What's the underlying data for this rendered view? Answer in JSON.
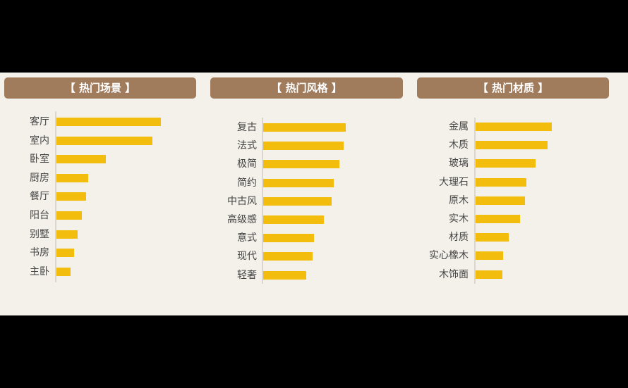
{
  "panels": [
    {
      "title": "【 热门场景 】"
    },
    {
      "title": "【 热门风格 】"
    },
    {
      "title": "【 热门材质 】"
    }
  ],
  "colors": {
    "header_bg": "#a07c5d",
    "bar": "#f2bd0c",
    "panel_bg": "#f4f1ea",
    "axis": "#dcd6cc"
  },
  "chart_data": [
    {
      "type": "bar",
      "orientation": "horizontal",
      "title": "【 热门场景 】",
      "categories": [
        "客厅",
        "室内",
        "卧室",
        "厨房",
        "餐厅",
        "阳台",
        "别墅",
        "书房",
        "主卧"
      ],
      "values": [
        148,
        136,
        70,
        45,
        42,
        36,
        30,
        25,
        20
      ],
      "xlabel": "",
      "ylabel": "",
      "grid": false,
      "legend": false
    },
    {
      "type": "bar",
      "orientation": "horizontal",
      "title": "【 热门风格 】",
      "categories": [
        "复古",
        "法式",
        "极简",
        "简约",
        "中古风",
        "高级感",
        "意式",
        "现代",
        "轻奢"
      ],
      "values": [
        117,
        114,
        108,
        100,
        97,
        86,
        72,
        70,
        61
      ],
      "xlabel": "",
      "ylabel": "",
      "grid": false,
      "legend": false
    },
    {
      "type": "bar",
      "orientation": "horizontal",
      "title": "【 热门材质 】",
      "categories": [
        "金属",
        "木质",
        "玻璃",
        "大理石",
        "原木",
        "实木",
        "材质",
        "实心橡木",
        "木饰面"
      ],
      "values": [
        108,
        102,
        85,
        72,
        70,
        63,
        47,
        39,
        38
      ],
      "xlabel": "",
      "ylabel": "",
      "grid": false,
      "legend": false
    }
  ]
}
